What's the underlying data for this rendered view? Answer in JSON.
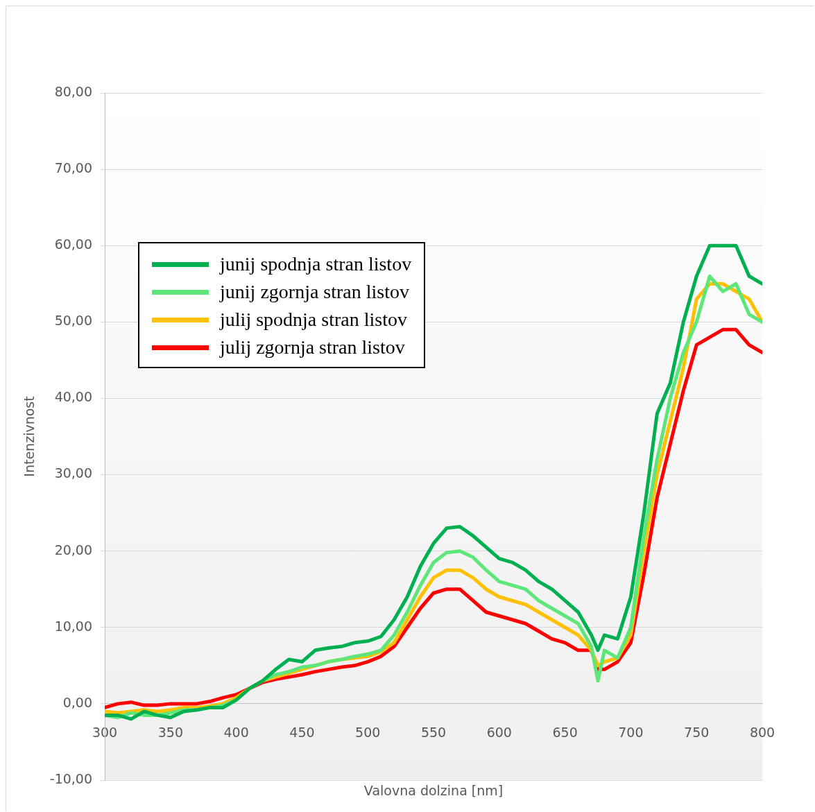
{
  "chart_data": {
    "type": "line",
    "xlabel": "Valovna dolzina [nm]",
    "ylabel": "Intenzivnost",
    "x": [
      300,
      310,
      320,
      330,
      340,
      350,
      360,
      370,
      380,
      390,
      400,
      410,
      420,
      430,
      440,
      450,
      460,
      470,
      480,
      490,
      500,
      510,
      520,
      530,
      540,
      550,
      560,
      570,
      580,
      590,
      600,
      610,
      620,
      630,
      640,
      650,
      660,
      670,
      675,
      680,
      690,
      700,
      710,
      720,
      730,
      740,
      750,
      760,
      770,
      780,
      790,
      800
    ],
    "series": [
      {
        "name": "junij spodnja stran listov",
        "color": "#00b050",
        "values": [
          -1.5,
          -1.5,
          -2,
          -1,
          -1.5,
          -1.8,
          -1,
          -0.8,
          -0.5,
          -0.5,
          0.5,
          2,
          3,
          4.5,
          5.8,
          5.5,
          7,
          7.3,
          7.5,
          8,
          8.2,
          8.8,
          11,
          14,
          18,
          21,
          23,
          23.2,
          22,
          20.5,
          19,
          18.5,
          17.5,
          16,
          15,
          13.5,
          12,
          9,
          7,
          9,
          8.5,
          14,
          25,
          38,
          42,
          50,
          56,
          60,
          60,
          60,
          56,
          55
        ]
      },
      {
        "name": "junij zgornja stran listov",
        "color": "#5ee67a",
        "values": [
          -1.5,
          -1.8,
          -1.2,
          -1.5,
          -1.5,
          -1.2,
          -0.8,
          -0.8,
          -0.5,
          -0.2,
          0.5,
          2,
          3,
          3.8,
          4.2,
          4.8,
          5,
          5.5,
          5.8,
          6.2,
          6.5,
          7,
          9,
          12,
          15.5,
          18.5,
          19.8,
          20,
          19.2,
          17.5,
          16,
          15.5,
          15,
          13.5,
          12.5,
          11.5,
          10.5,
          7.5,
          3,
          7,
          6,
          10,
          22,
          32,
          40,
          46,
          50,
          56,
          54,
          55,
          51,
          50
        ]
      },
      {
        "name": "julij spodnja stran listov",
        "color": "#ffc000",
        "values": [
          -1,
          -1.2,
          -1,
          -0.8,
          -1,
          -0.8,
          -0.5,
          -0.5,
          -0.3,
          0,
          0.8,
          2,
          3,
          3.5,
          4,
          4.5,
          5,
          5.5,
          5.8,
          6,
          6.2,
          6.8,
          8,
          11,
          14,
          16.5,
          17.5,
          17.5,
          16.5,
          15,
          14,
          13.5,
          13,
          12,
          11,
          10,
          9,
          7,
          5,
          5.5,
          6,
          9,
          20,
          30,
          37,
          44,
          53,
          55,
          55,
          54,
          53,
          50
        ]
      },
      {
        "name": "julij zgornja stran listov",
        "color": "#ff0000",
        "values": [
          -0.5,
          0,
          0.2,
          -0.2,
          -0.2,
          0,
          0,
          0,
          0.3,
          0.8,
          1.2,
          2,
          2.8,
          3.2,
          3.5,
          3.8,
          4.2,
          4.5,
          4.8,
          5,
          5.5,
          6.2,
          7.5,
          10,
          12.5,
          14.5,
          15,
          15,
          13.5,
          12,
          11.5,
          11,
          10.5,
          9.5,
          8.5,
          8,
          7,
          7,
          4.5,
          4.5,
          5.5,
          8,
          17,
          27,
          34,
          41,
          47,
          48,
          49,
          49,
          47,
          46
        ]
      }
    ],
    "xlim": [
      300,
      800
    ],
    "xticks": [
      300,
      350,
      400,
      450,
      500,
      550,
      600,
      650,
      700,
      750,
      800
    ],
    "ylim": [
      -10,
      80
    ],
    "yticks": [
      {
        "value": -10,
        "label": "-10,00"
      },
      {
        "value": 0,
        "label": "0,00"
      },
      {
        "value": 10,
        "label": "10,00"
      },
      {
        "value": 20,
        "label": "20,00"
      },
      {
        "value": 30,
        "label": "30,00"
      },
      {
        "value": 40,
        "label": "40,00"
      },
      {
        "value": 50,
        "label": "50,00"
      },
      {
        "value": 60,
        "label": "60,00"
      },
      {
        "value": 70,
        "label": "70,00"
      },
      {
        "value": 80,
        "label": "80,00"
      }
    ],
    "grid": "y",
    "legend": "top left",
    "marker": "none",
    "line_style": "solid"
  }
}
